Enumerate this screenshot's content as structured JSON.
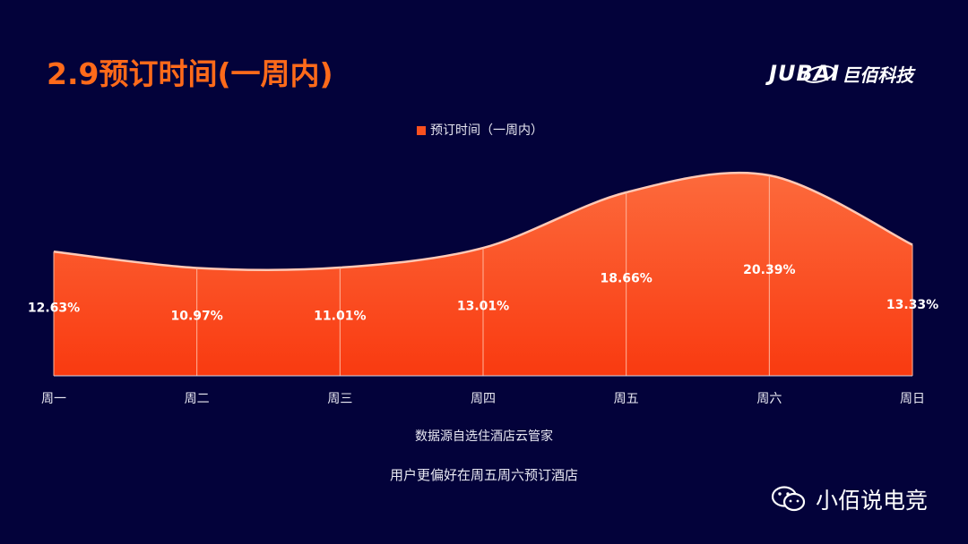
{
  "page": {
    "title": "2.9预订时间(一周内)",
    "brand_logo": "JUBAI",
    "brand_name": "巨佰科技",
    "source_note": "数据源自选住酒店云管家",
    "insight": "用户更偏好在周五周六预订酒店",
    "wechat_account": "小佰说电竞"
  },
  "colors": {
    "background": "#03023a",
    "title": "#ff6a1a",
    "area_top": "#fc6a3c",
    "area_bottom": "#f93a10",
    "line": "#ffc9b6"
  },
  "chart_data": {
    "type": "area",
    "legend": "预订时间（一周内）",
    "legend_position": "top-center",
    "categories": [
      "周一",
      "周二",
      "周三",
      "周四",
      "周五",
      "周六",
      "周日"
    ],
    "series": [
      {
        "name": "预订时间（一周内）",
        "values": [
          12.63,
          10.97,
          11.01,
          13.01,
          18.66,
          20.39,
          13.33
        ]
      }
    ],
    "data_labels": [
      "12.63%",
      "10.97%",
      "11.01%",
      "13.01%",
      "18.66%",
      "20.39%",
      "13.33%"
    ],
    "unit": "%",
    "ylim": [
      0,
      20.39
    ],
    "grid": false
  }
}
